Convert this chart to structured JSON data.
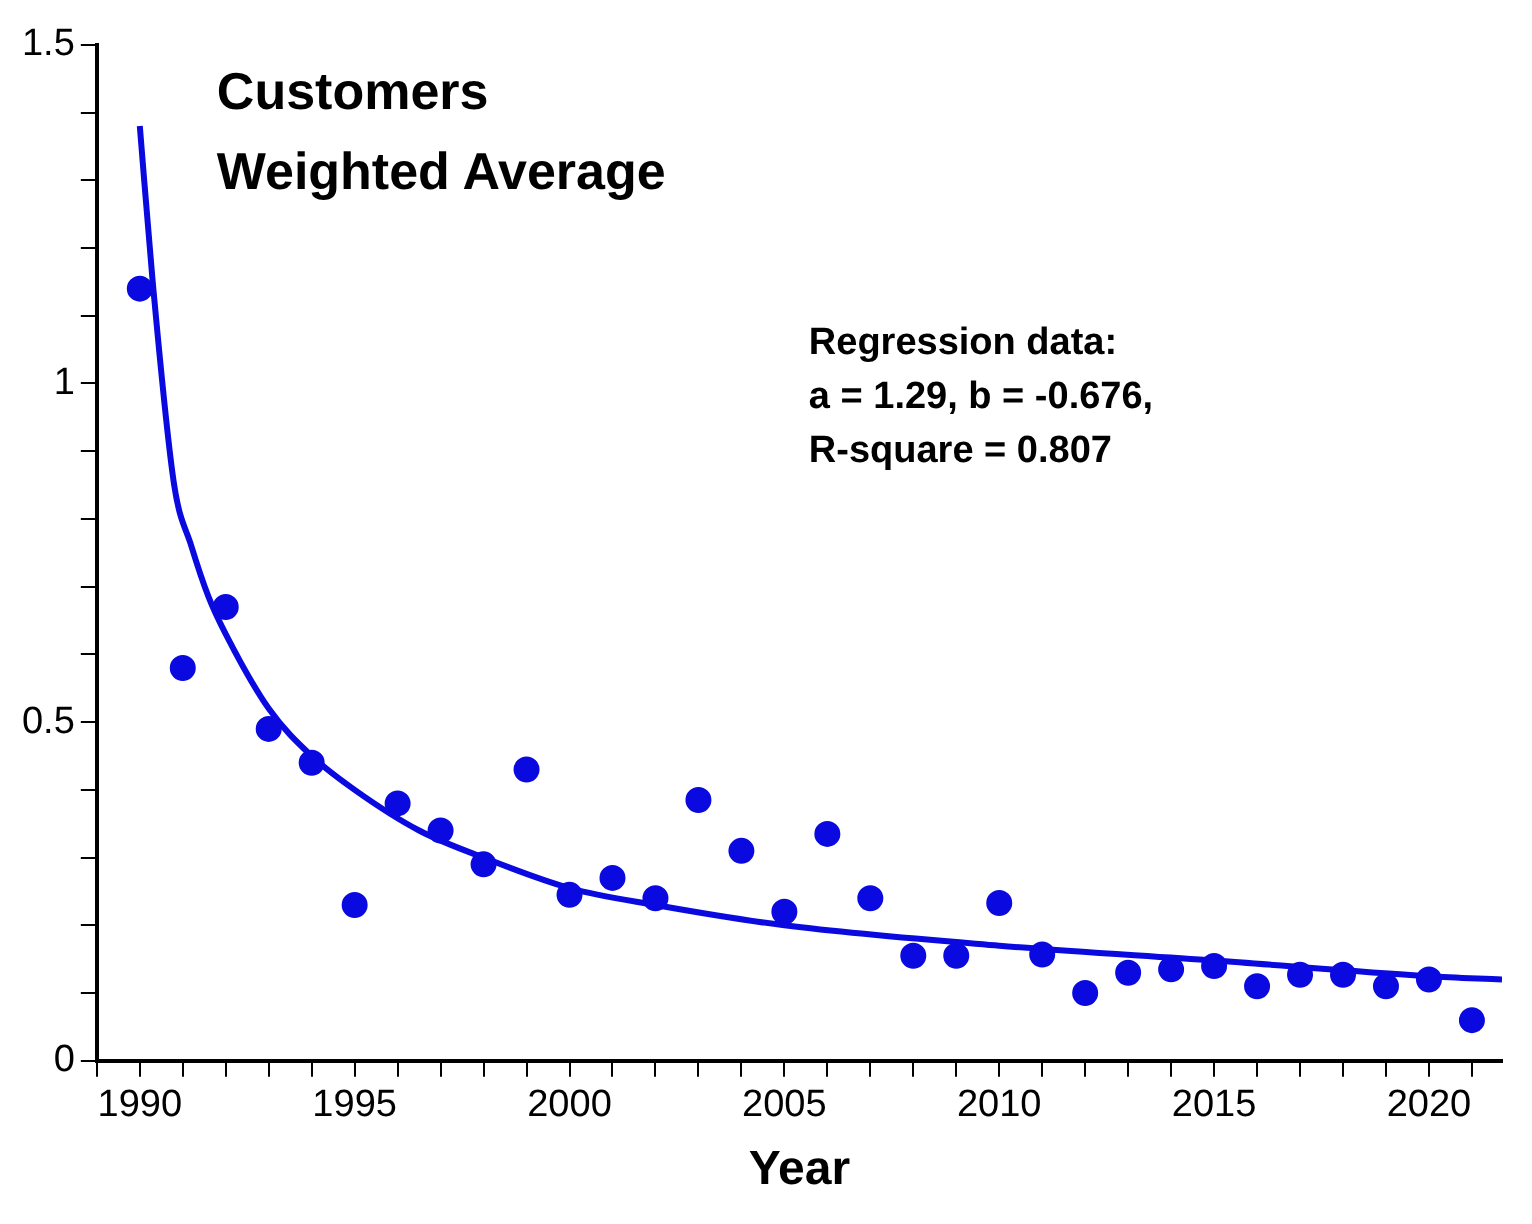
{
  "chart_data": {
    "type": "scatter",
    "title": "Customers\nWeighted Average",
    "xlabel": "Year",
    "annotations": [
      "Regression data:\na = 1.29, b = -0.676,\nR-square = 0.807"
    ],
    "xlim": [
      1989,
      2021.7
    ],
    "xticks": [
      {
        "value": 1989,
        "label": null
      },
      1990,
      {
        "value": 1991,
        "label": null
      },
      {
        "value": 1992,
        "label": null
      },
      {
        "value": 1993,
        "label": null
      },
      {
        "value": 1994,
        "label": null
      },
      1995,
      {
        "value": 1996,
        "label": null
      },
      {
        "value": 1997,
        "label": null
      },
      {
        "value": 1998,
        "label": null
      },
      {
        "value": 1999,
        "label": null
      },
      2000,
      {
        "value": 2001,
        "label": null
      },
      {
        "value": 2002,
        "label": null
      },
      {
        "value": 2003,
        "label": null
      },
      {
        "value": 2004,
        "label": null
      },
      2005,
      {
        "value": 2006,
        "label": null
      },
      {
        "value": 2007,
        "label": null
      },
      {
        "value": 2008,
        "label": null
      },
      {
        "value": 2009,
        "label": null
      },
      2010,
      {
        "value": 2011,
        "label": null
      },
      {
        "value": 2012,
        "label": null
      },
      {
        "value": 2013,
        "label": null
      },
      {
        "value": 2014,
        "label": null
      },
      2015,
      {
        "value": 2016,
        "label": null
      },
      {
        "value": 2017,
        "label": null
      },
      {
        "value": 2018,
        "label": null
      },
      {
        "value": 2019,
        "label": null
      },
      2020,
      {
        "value": 2021,
        "label": null
      }
    ],
    "ylim": [
      0,
      1.5
    ],
    "yticks": [
      0,
      {
        "value": 0.1,
        "label": null
      },
      {
        "value": 0.2,
        "label": null
      },
      {
        "value": 0.3,
        "label": null
      },
      {
        "value": 0.4,
        "label": null
      },
      0.5,
      {
        "value": 0.6,
        "label": null
      },
      {
        "value": 0.7,
        "label": null
      },
      {
        "value": 0.8,
        "label": null
      },
      {
        "value": 0.9,
        "label": null
      },
      1,
      {
        "value": 1.1,
        "label": null
      },
      {
        "value": 1.2,
        "label": null
      },
      {
        "value": 1.3,
        "label": null
      },
      {
        "value": 1.4,
        "label": null
      },
      1.5
    ],
    "series": [
      {
        "marker": "circle",
        "color": "#0a0ae0",
        "x": [
          1990,
          1991,
          1992,
          1993,
          1994,
          1995,
          1996,
          1997,
          1998,
          1999,
          2000,
          2001,
          2002,
          2003,
          2004,
          2005,
          2006,
          2007,
          2008,
          2009,
          2010,
          2011,
          2012,
          2013,
          2014,
          2015,
          2016,
          2017,
          2018,
          2019,
          2020,
          2021
        ],
        "values": [
          1.14,
          0.58,
          0.67,
          0.49,
          0.44,
          0.23,
          0.38,
          0.34,
          0.29,
          0.43,
          0.245,
          0.27,
          0.24,
          0.385,
          0.31,
          0.22,
          0.335,
          0.24,
          0.155,
          0.155,
          0.233,
          0.157,
          0.1,
          0.13,
          0.135,
          0.14,
          0.11,
          0.127,
          0.127,
          0.11,
          0.12,
          0.06
        ]
      },
      {
        "type": "line",
        "marker": "none",
        "color": "#0a0ae0",
        "x": [
          1990,
          1990.3,
          1990.8,
          1991.2,
          1991.6,
          1992,
          1993,
          1994,
          1995,
          1996.5,
          1998,
          2000,
          2002,
          2005,
          2010,
          2015,
          2020,
          2021.7
        ],
        "values": [
          1.38,
          1.15,
          0.85,
          0.76,
          0.685,
          0.63,
          0.52,
          0.45,
          0.4,
          0.34,
          0.3,
          0.255,
          0.23,
          0.2,
          0.17,
          0.148,
          0.125,
          0.12
        ]
      }
    ]
  }
}
